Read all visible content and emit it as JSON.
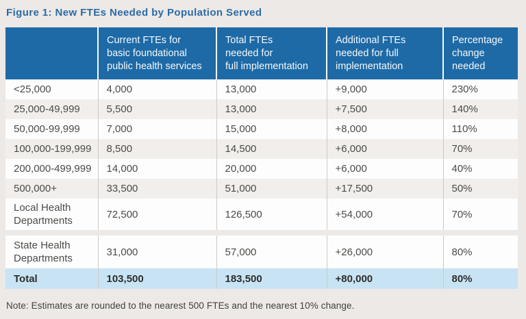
{
  "title": "Figure 1: New FTEs Needed by Population Served",
  "table": {
    "columns": [
      "",
      "Current FTEs for\nbasic foundational\npublic health services",
      "Total FTEs\nneeded for\nfull implementation",
      "Additional FTEs\nneeded for full\nimplementation",
      "Percentage\nchange\nneeded"
    ],
    "rows": [
      {
        "cells": [
          "<25,000",
          "4,000",
          "13,000",
          "+9,000",
          "230%"
        ]
      },
      {
        "cells": [
          "25,000-49,999",
          "5,500",
          "13,000",
          "+7,500",
          "140%"
        ]
      },
      {
        "cells": [
          "50,000-99,999",
          "7,000",
          "15,000",
          "+8,000",
          "110%"
        ]
      },
      {
        "cells": [
          "100,000-199,999",
          "8,500",
          "14,500",
          "+6,000",
          "70%"
        ]
      },
      {
        "cells": [
          "200,000-499,999",
          "14,000",
          "20,000",
          "+6,000",
          "40%"
        ]
      },
      {
        "cells": [
          "500,000+",
          "33,500",
          "51,000",
          "+17,500",
          "50%"
        ]
      },
      {
        "cells": [
          "Local Health\nDepartments",
          "72,500",
          "126,500",
          "+54,000",
          "70%"
        ]
      },
      {
        "cells": [
          "State Health\nDepartments",
          "31,000",
          "57,000",
          "+26,000",
          "80%"
        ]
      },
      {
        "cells": [
          "Total",
          "103,500",
          "183,500",
          "+80,000",
          "80%"
        ]
      }
    ]
  },
  "note": "Note: Estimates are rounded to the nearest 500 FTEs and the nearest 10% change.",
  "colors": {
    "header_blue": "#1e6aa6",
    "title_blue": "#2c6ba6",
    "total_row_blue": "#c8e4f4",
    "zebra_gray": "#f1eeeb",
    "page_background": "#ece9e6",
    "body_text": "#4c4b48"
  }
}
